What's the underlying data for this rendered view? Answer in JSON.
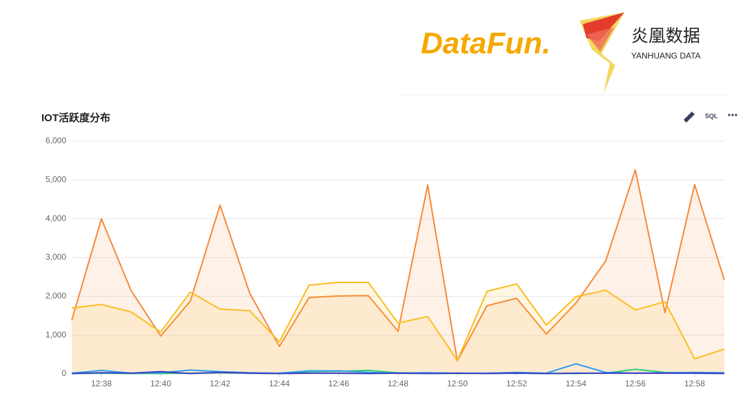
{
  "header": {
    "logo": "DataFun.",
    "brand": "炎凰数据",
    "brand_en": "YANHUANG DATA"
  },
  "toolbar": {
    "sql": "SQL"
  },
  "chart_data": {
    "type": "line",
    "title": "IOT活跃度分布",
    "categories": [
      null,
      "12:38",
      null,
      "12:40",
      null,
      "12:42",
      null,
      "12:44",
      null,
      "12:46",
      null,
      "12:48",
      null,
      "12:50",
      null,
      "12:52",
      null,
      "12:54",
      null,
      "12:56",
      null,
      "12:58",
      null
    ],
    "series": [
      {
        "color": "#f5883a",
        "fill": true,
        "values": [
          1380,
          4000,
          2150,
          980,
          1880,
          4350,
          2080,
          710,
          1970,
          2010,
          2020,
          1100,
          4870,
          340,
          1760,
          1950,
          1030,
          1830,
          2910,
          5260,
          1580,
          4880,
          2420
        ]
      },
      {
        "color": "#fbbd1d",
        "fill": true,
        "values": [
          1700,
          1790,
          1600,
          1080,
          2110,
          1670,
          1630,
          830,
          2290,
          2360,
          2360,
          1310,
          1480,
          350,
          2130,
          2320,
          1260,
          1990,
          2160,
          1650,
          1860,
          390,
          640
        ]
      },
      {
        "color": "#2ecc71",
        "fill": false,
        "values": [
          10,
          20,
          10,
          10,
          20,
          30,
          20,
          10,
          60,
          70,
          90,
          30,
          20,
          10,
          20,
          20,
          10,
          10,
          20,
          120,
          40,
          30,
          20
        ]
      },
      {
        "color": "#2d9cf0",
        "fill": false,
        "values": [
          20,
          90,
          20,
          30,
          100,
          60,
          30,
          20,
          80,
          80,
          40,
          20,
          30,
          20,
          20,
          40,
          20,
          260,
          40,
          20,
          30,
          40,
          30
        ]
      },
      {
        "color": "#3b3fc4",
        "fill": false,
        "values": [
          10,
          30,
          20,
          60,
          10,
          40,
          20,
          10,
          20,
          20,
          10,
          20,
          10,
          20,
          10,
          20,
          10,
          20,
          20,
          20,
          20,
          20,
          10
        ]
      }
    ],
    "ylim": [
      0,
      6000
    ],
    "yticks": [
      0,
      {
        "value": 1000,
        "label": "1,000"
      },
      {
        "value": 2000,
        "label": "2,000"
      },
      {
        "value": 3000,
        "label": "3,000"
      },
      {
        "value": 4000,
        "label": "4,000"
      },
      {
        "value": 5000,
        "label": "5,000"
      },
      {
        "value": 6000,
        "label": "6,000"
      }
    ],
    "grid": true
  }
}
